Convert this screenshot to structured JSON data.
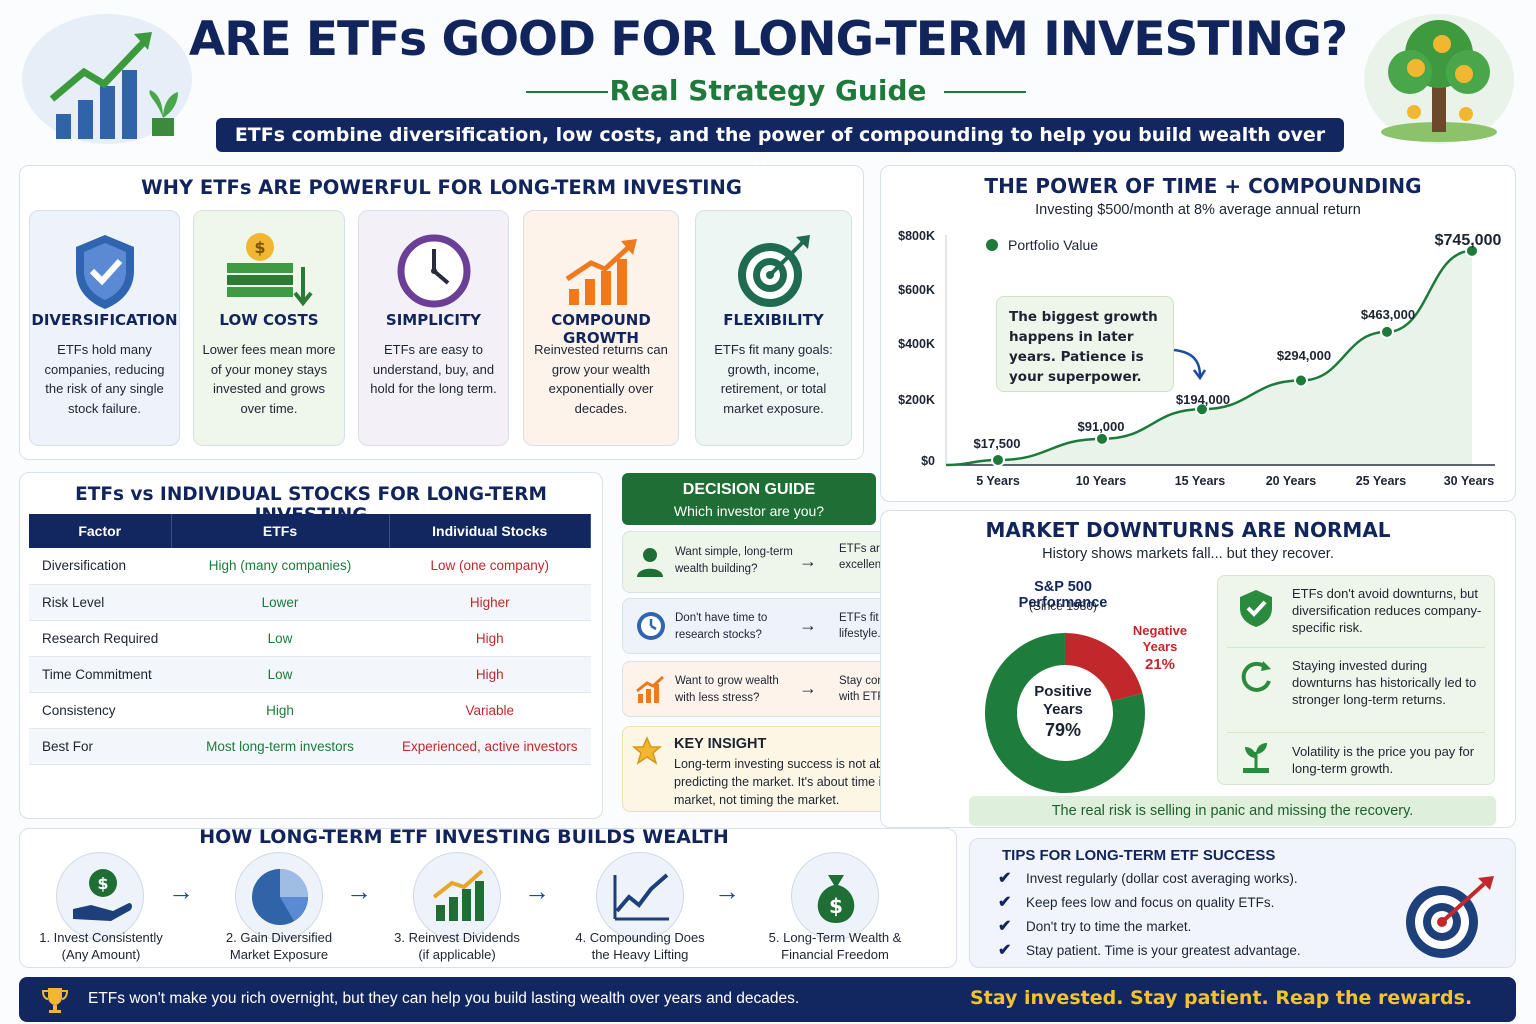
{
  "header": {
    "title": "ARE ETFs GOOD FOR LONG-TERM INVESTING?",
    "subtitle": "Real Strategy Guide",
    "banner": "ETFs combine diversification, low costs, and the power of compounding to help you build wealth over time."
  },
  "why": {
    "title": "WHY ETFs ARE POWERFUL FOR LONG-TERM INVESTING",
    "cards": [
      {
        "title": "DIVERSIFICATION",
        "text": "ETFs hold many companies, reducing the risk of any single stock failure.",
        "icon": "shield-check-icon"
      },
      {
        "title": "LOW COSTS",
        "text": "Lower fees mean more of your money stays invested and grows over time.",
        "icon": "money-stack-icon"
      },
      {
        "title": "SIMPLICITY",
        "text": "ETFs are easy to understand, buy, and hold for the long term.",
        "icon": "clock-icon"
      },
      {
        "title": "COMPOUND GROWTH",
        "text": "Reinvested returns can grow your wealth exponentially over decades.",
        "icon": "growth-chart-icon"
      },
      {
        "title": "FLEXIBILITY",
        "text": "ETFs fit many goals: growth, income, retirement, or total market exposure.",
        "icon": "target-icon"
      }
    ]
  },
  "compounding": {
    "title": "THE POWER OF TIME + COMPOUNDING",
    "subtitle": "Investing $500/month at 8% average annual return",
    "legend": "Portfolio Value",
    "callout": "The biggest growth happens in later years. Patience is your superpower.",
    "colors": {
      "line": "#1d7a3a",
      "fill": "#e8f3ea"
    }
  },
  "chart_data": {
    "type": "line",
    "series": [
      {
        "name": "Portfolio Value",
        "values": [
          17500,
          91000,
          194000,
          294000,
          463000,
          745000
        ]
      }
    ],
    "categories": [
      "5 Years",
      "10 Years",
      "15 Years",
      "20 Years",
      "25 Years",
      "30 Years"
    ],
    "data_labels": [
      "$17,500",
      "$91,000",
      "$194,000",
      "$294,000",
      "$463,000",
      "$745,000"
    ],
    "yticks": [
      "$0",
      "$200K",
      "$400K",
      "$600K",
      "$800K"
    ],
    "ylim": [
      0,
      800000
    ],
    "legend_position": "top-left",
    "grid": false
  },
  "comparison": {
    "title": "ETFs vs INDIVIDUAL STOCKS FOR LONG-TERM INVESTING",
    "headers": [
      "Factor",
      "ETFs",
      "Individual Stocks"
    ],
    "rows": [
      [
        "Diversification",
        "High (many companies)",
        "Low (one company)"
      ],
      [
        "Risk Level",
        "Lower",
        "Higher"
      ],
      [
        "Research Required",
        "Low",
        "High"
      ],
      [
        "Time Commitment",
        "Low",
        "High"
      ],
      [
        "Consistency",
        "High",
        "Variable"
      ],
      [
        "Best For",
        "Most long-term investors",
        "Experienced, active investors"
      ]
    ]
  },
  "decision": {
    "title": "DECISION GUIDE",
    "subtitle": "Which investor are you?",
    "items": [
      {
        "q": "Want simple, long-term wealth building?",
        "a": "ETFs are an excellent choice."
      },
      {
        "q": "Don't have time to research stocks?",
        "a": "ETFs fit your lifestyle."
      },
      {
        "q": "Want to grow wealth with less stress?",
        "a": "Stay consistent with ETFs."
      }
    ],
    "insight_title": "KEY INSIGHT",
    "insight_text": "Long-term investing success is not about predicting the market. It's about time in the market, not timing the market.",
    "arrow": "→"
  },
  "downturns": {
    "title": "MARKET DOWNTURNS ARE NORMAL",
    "subtitle": "History shows markets fall... but they recover.",
    "donut_title": "S&P 500 Performance",
    "donut_sub": "(Since 1980)",
    "positive_label": "Positive Years",
    "positive_value": "79%",
    "positive_pct": 79,
    "negative_label": "Negative Years",
    "negative_value": "21%",
    "negative_pct": 21,
    "bullets": [
      "ETFs don't avoid downturns, but diversification reduces company-specific risk.",
      "Staying invested during downturns has historically led to stronger long-term returns.",
      "Volatility is the price you pay for long-term growth."
    ],
    "footer": "The real risk is selling in panic and missing the recovery.",
    "colors": {
      "positive": "#1e7d3c",
      "negative": "#c0282b"
    }
  },
  "builds": {
    "title": "HOW LONG-TERM ETF INVESTING BUILDS WEALTH",
    "steps": [
      {
        "label": "1. Invest Consistently (Any Amount)",
        "icon": "money-hand-icon"
      },
      {
        "label": "2. Gain Diversified Market Exposure",
        "icon": "pie-chart-icon"
      },
      {
        "label": "3. Reinvest Dividends (if applicable)",
        "icon": "bar-growth-icon"
      },
      {
        "label": "4. Compounding Does the Heavy Lifting",
        "icon": "trend-line-icon"
      },
      {
        "label": "5. Long-Term Wealth & Financial Freedom",
        "icon": "money-bag-icon"
      }
    ]
  },
  "tips": {
    "title": "TIPS FOR LONG-TERM ETF SUCCESS",
    "items": [
      "Invest regularly (dollar cost averaging works).",
      "Keep fees low and focus on quality ETFs.",
      "Don't try to time the market.",
      "Stay patient. Time is your greatest advantage."
    ]
  },
  "footer": {
    "left": "ETFs won't make you rich overnight, but they can help you build lasting wealth over years and decades.",
    "right": "Stay invested. Stay patient. Reap the rewards."
  }
}
